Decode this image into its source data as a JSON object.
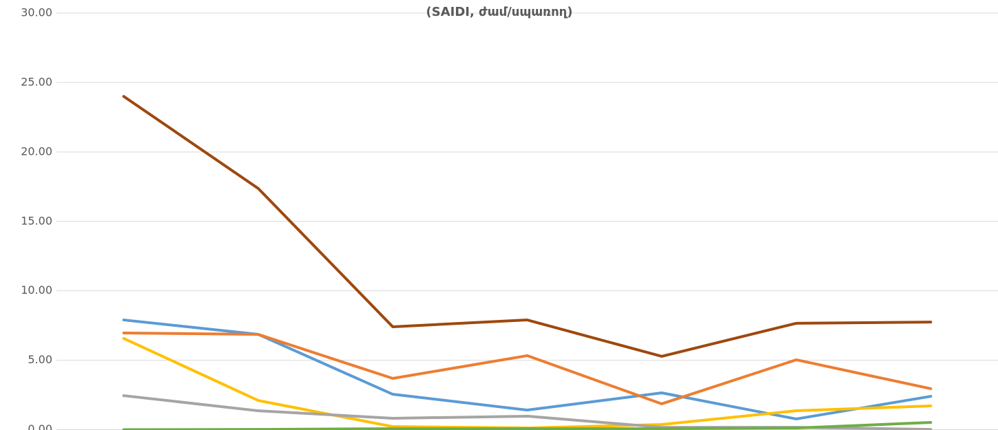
{
  "chart_data": {
    "type": "line",
    "title": "(SAIDI, ժամ/սպառող)",
    "categories": [
      null,
      null,
      null,
      null,
      null,
      null,
      null
    ],
    "series": [
      {
        "color": "#9e480e",
        "values": [
          24.0,
          17.37,
          7.41,
          7.9,
          5.28,
          7.66,
          7.75
        ]
      },
      {
        "color": "#5b9bd5",
        "values": [
          7.9,
          6.86,
          2.55,
          1.41,
          2.65,
          0.77,
          2.4
        ]
      },
      {
        "color": "#ed7d31",
        "values": [
          6.96,
          6.86,
          3.69,
          5.33,
          1.86,
          5.03,
          2.95
        ]
      },
      {
        "color": "#ffc000",
        "values": [
          6.57,
          2.1,
          0.22,
          0.12,
          0.37,
          1.36,
          1.71
        ]
      },
      {
        "color": "#a5a5a5",
        "values": [
          2.45,
          1.36,
          0.82,
          0.97,
          0.17,
          0.17,
          0.02
        ]
      },
      {
        "color": "#70ad47",
        "values": [
          0,
          0.02,
          0.07,
          0.07,
          0.07,
          0.12,
          0.52
        ]
      }
    ],
    "ylim": [
      0,
      30
    ],
    "yticks": [
      {
        "value": 0,
        "label": "0.00"
      },
      {
        "value": 5,
        "label": "5.00"
      },
      {
        "value": 10,
        "label": "10.00"
      },
      {
        "value": 15,
        "label": "15.00"
      },
      {
        "value": 20,
        "label": "20.00"
      },
      {
        "value": 25,
        "label": "25.00"
      },
      {
        "value": 30,
        "label": "30.00"
      }
    ],
    "grid": true
  }
}
